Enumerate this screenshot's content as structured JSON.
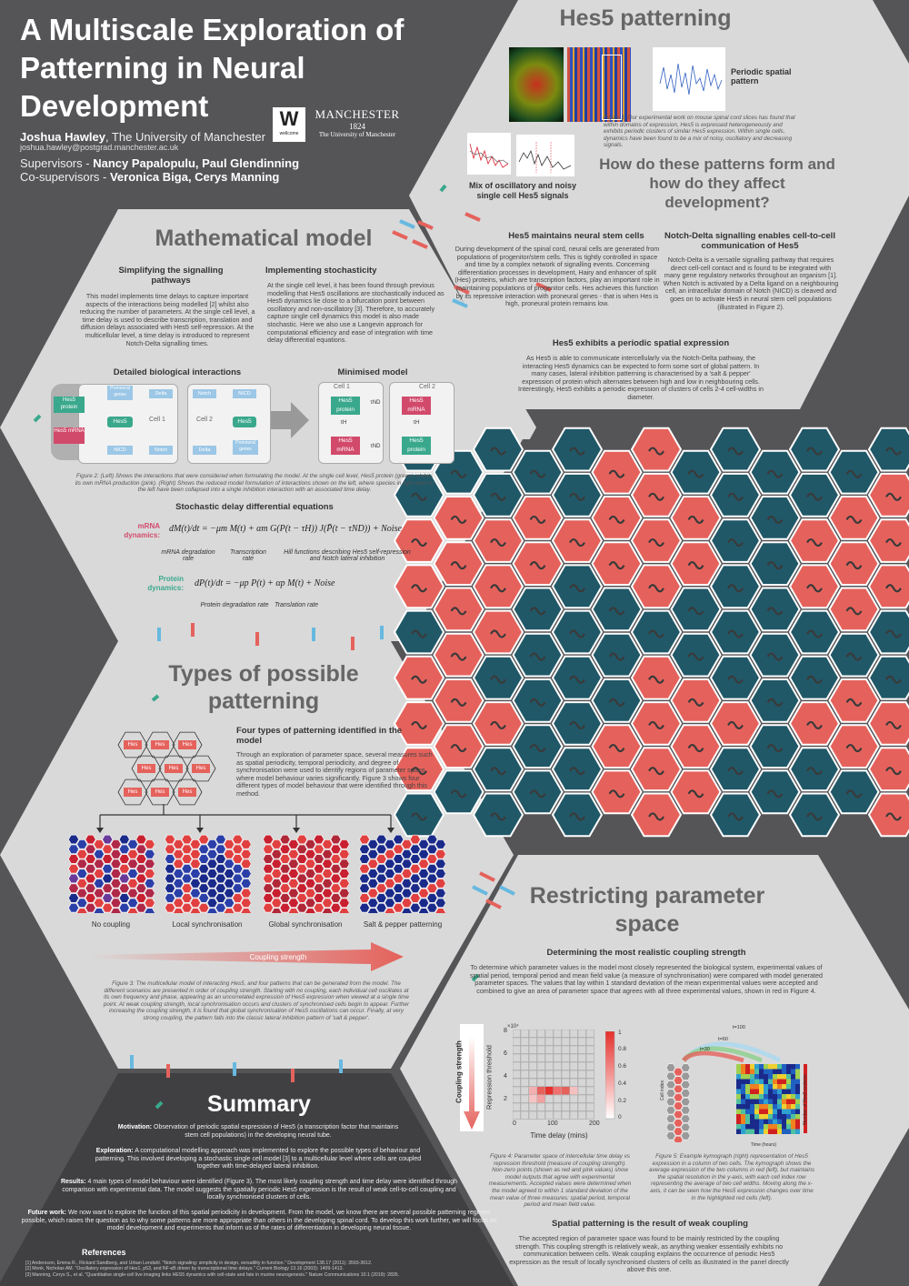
{
  "header": {
    "title": "A Multiscale Exploration of Patterning in Neural Development",
    "author_name": "Joshua Hawley",
    "author_affil": ", The University of Manchester",
    "email": "joshua.hawley@postgrad.manchester.ac.uk",
    "supervisors_label": "Supervisors - ",
    "supervisors": "Nancy Papalopulu, Paul Glendinning",
    "cosupervisors_label": "Co-supervisors - ",
    "cosupervisors": "Veronica Biga, Cerys Manning",
    "wellcome_letter": "W",
    "wellcome_word": "wellcome",
    "manchester_name": "MANCHESTER",
    "manchester_year": "1824",
    "manchester_sub": "The University of Manchester"
  },
  "hes5": {
    "title": "Hes5 patterning",
    "periodic_label": "Periodic spatial pattern",
    "mix_label": "Mix of oscillatory and noisy single cell Hes5 signals",
    "fig1_caption": "Figure 1: Our experimental work on mouse spinal cord slices has found that within domains of expression, Hes5 is expressed heterogeneously and exhibits periodic clusters of similar Hes5 expression. Within single cells, dynamics have been found to be a mix of noisy, oscillatory and decreasing signals.",
    "question": "How do these patterns form and how do they affect development?",
    "maintains_title": "Hes5 maintains neural stem cells",
    "maintains_text": "During development of the spinal cord, neural cells are generated from populations of progenitor/stem cells. This is tightly controlled in space and time by a complex network of signalling events. Concerning differentiation processes in development, Hairy and enhancer of split (Hes) proteins, which are transcription factors, play an important role in maintaining populations of progenitor cells. Hes achieves this function by its repressive interaction with proneural genes - that is when Hes is high, proneural protein remains low.",
    "notch_title": "Notch-Delta signalling enables cell-to-cell communication of Hes5",
    "notch_text": "Notch-Delta is a versatile signalling pathway that requires direct cell-cell contact and is found to be integrated with many gene regulatory networks throughout an organism [1]. When Notch is activated by a Delta ligand on a neighbouring cell, an intracellular domain of Notch (NICD) is cleaved and goes on to activate Hes5 in neural stem cell populations (illustrated in Figure 2).",
    "periodic_title": "Hes5 exhibits a periodic spatial expression",
    "periodic_text": "As Hes5 is able to communicate intercellularly via the Notch-Delta pathway, the interacting Hes5 dynamics can be expected to form some sort of global pattern. In many cases, lateral inhibition patterning is characterised by a 'salt & pepper' expression of protein which alternates between high and low in neighbouring cells. Interestingly, Hes5 exhibits a periodic expression of clusters of cells 2-4 cell-widths in diameter."
  },
  "math": {
    "title": "Mathematical model",
    "simplify_title": "Simplifying the signalling pathways",
    "simplify_text": "This model implements time delays to capture important aspects of the interactions being modelled [2] whilst also reducing the number of parameters. At the single cell level, a time delay is used to describe transcription, translation and diffusion delays associated with Hes5 self-repression. At the multicellular level, a time delay is introduced to represent Notch-Delta signalling times.",
    "stoch_title": "Implementing stochasticity",
    "stoch_text": "At the single cell level, it has been found through previous modelling that Hes5 oscillations are stochastically induced as Hes5 dynamics lie close to a bifurcation point between oscillatory and non-oscillatory [3]. Therefore, to accurately capture single cell dynamics this model is also made stochastic. Here we also use a Langevin approach for computational efficiency and ease of integration with time delay differential equations.",
    "detailed_label": "Detailed biological interactions",
    "minimised_label": "Minimised model",
    "cell1": "Cell 1",
    "cell2": "Cell 2",
    "hes5_protein": "Hes5 protein",
    "hes5_mrna": "Hes5 mRNA",
    "hes5": "Hes5",
    "proneural": "Proneural genes",
    "delta": "Delta",
    "notch": "Notch",
    "nicd": "NICD",
    "tau_nd": "τND",
    "tau_h": "τH",
    "fig2_caption": "Figure 2: (Left) Shows the interactions that were considered when formulating the model. At the single cell level, Hes5 protein (green) inhibits its own mRNA production (pink). (Right) Shows the reduced model formulation of interactions shown on the left, where species in light blue on the left have been collapsed into a single inhibition interaction with an associated time delay.",
    "sdde_title": "Stochastic delay differential equations",
    "mrna_label": "mRNA dynamics:",
    "mrna_eq": "dM(t)/dt = −μm M(t) + αm G(P(t − τH)) J(P̄(t − τND)) + Noise",
    "mrna_deg": "mRNA degradation rate",
    "transcription": "Transcription rate",
    "hill": "Hill functions describing Hes5 self-repression and Notch lateral inhibition",
    "protein_label": "Protein dynamics:",
    "protein_eq": "dP(t)/dt = −μp P(t) + αp M(t) + Noise",
    "protein_deg": "Protein degradation rate",
    "translation": "Translation rate"
  },
  "types": {
    "title": "Types of possible patterning",
    "hes_label": "Hes",
    "four_title": "Four types of patterning identified in the model",
    "four_text": "Through an exploration of parameter space, several measures such as spatial periodicity, temporal periodicity, and degree of synchronisation were used to identify regions of parameter space where model behaviour varies significantly. Figure 3 shows four different types of model behaviour that were identified through this method.",
    "labels": [
      "No coupling",
      "Local synchronisation",
      "Global synchronisation",
      "Salt & pepper patterning"
    ],
    "coupling_label": "Coupling strength",
    "fig3_caption": "Figure 3: The multicellular model of interacting Hes5, and four patterns that can be generated from the model. The different scenarios are presented in order of coupling strength. Starting with no coupling, each individual cell oscillates at its own frequency and phase, appearing as an uncorrelated expression of Hes5 expression when viewed at a single time point. At weak coupling strength, local synchronisation occurs and clusters of synchronised cells begin to appear. Further increasing the coupling strength, it is found that global synchronisation of Hes5 oscillations can occur. Finally, at very strong coupling, the pattern falls into the classic lateral inhibition pattern of 'salt & pepper'."
  },
  "restrict": {
    "title": "Restricting parameter space",
    "det_title": "Determining the most realistic coupling strength",
    "det_text": "To determine which parameter values in the model most closely represented the biological system, experimental values of spatial period, temporal period and mean field value (a measure of synchronisation) were compared with model generated parameter spaces. The values that lay within 1 standard deviation of the mean experimental values were accepted and combined to give an area of parameter space that agrees with all three experimental values, shown in red in Figure 4.",
    "coupling_strength": "Coupling strength",
    "ylabel": "Repression threshold",
    "xlabel": "Time delay (mins)",
    "exp_label": "×10⁴",
    "y_ticks": [
      "8",
      "6",
      "4",
      "2"
    ],
    "x_ticks": [
      "0",
      "100",
      "200"
    ],
    "cb_ticks": [
      "1",
      "0.8",
      "0.6",
      "0.4",
      "0.2",
      "0"
    ],
    "fig4_caption": "Figure 4: Parameter space of intercellular time delay vs repression threshold (measure of coupling strength). Non-zero points (shown as red and pink values) show model outputs that agree with experimental measurements. Accepted values were determined when the model agreed to within 1 standard deviation of the mean value of three measures: spatial period, temporal period and mean field value.",
    "fig5_caption": "Figure 5: Example kymograph (right) representation of Hes5 expression in a column of two cells. The kymograph shows the average expression of the two columns in red (left), but maintains the spatial resolution in the y-axis, with each cell index row representing the average of two cell widths. Moving along the x-axis, it can be seen how the Hes5 expression changes over time in the highlighted red cells (left).",
    "kymo_t100": "t=100",
    "kymo_t60": "t=60",
    "kymo_t30": "t=30",
    "kymo_cell_index": "Cell index",
    "kymo_time": "Time (hours)",
    "kymo_hes": "Number of Hes5 proteins",
    "weak_title": "Spatial patterning is the result of weak coupling",
    "weak_text": "The accepted region of parameter space was found to be mainly restricted by the coupling strength. This coupling strength is relatively weak, as anything weaker essentially exhibits no communication between cells. Weak coupling explains the occurrence of periodic Hes5 expression as the result of locally synchronised clusters of cells as illustrated in the panel directly above this one."
  },
  "summary": {
    "title": "Summary",
    "motivation_label": "Motivation:",
    "motivation": "Observation of periodic spatial expression of Hes5 (a transcription factor that maintains stem cell populations) in the developing neural tube.",
    "exploration_label": "Exploration:",
    "exploration": "A computational modelling approach was implemented to explore the possible types of behaviour and patterning. This involved developing a stochastic single cell model [3] to a multicellular level where cells are coupled together with time-delayed lateral inhibition.",
    "results_label": "Results:",
    "results": "4 main types of model behaviour were identified (Figure 3). The most likely coupling strength and time delay were identified through comparison with experimental data. The model suggests the spatially periodic Hes5 expression is the result of weak cell-to-cell coupling and locally synchronised clusters of cells.",
    "future_label": "Future work:",
    "future": "We now want to explore the function of this spatial periodicity in development. From the model, we know there are several possible patterning regimes possible, which raises the question as to why some patterns are more appropriate than others in the developing spinal cord. To develop this work further, we will focus on model development and experiments that inform us of the rates of differentiation in developing neural tissue.",
    "ref_title": "References",
    "refs": [
      "[1] Andersson, Emma R., Rickard Sandberg, and Urban Lendahl. \"Notch signaling: simplicity in design, versatility in function.\" Development 138.17 (2011): 3593-3612.",
      "[2] Monk, Nicholas AM. \"Oscillatory expression of Hes1, p53, and NF-κB driven by transcriptional time delays.\" Current Biology 13.16 (2003): 1409-1413.",
      "[3] Manning, Cerys S., et al. \"Quantitative single-cell live imaging links HES5 dynamics with cell-state and fate in murine neurogenesis.\" Nature Communications 10.1 (2019): 2835."
    ]
  },
  "colors": {
    "teal": "#205868",
    "coral": "#e5625c",
    "hex_bg": "#d9d9d9",
    "dark": "#555558",
    "green": "#3aa88c",
    "pink": "#d24a6b"
  }
}
